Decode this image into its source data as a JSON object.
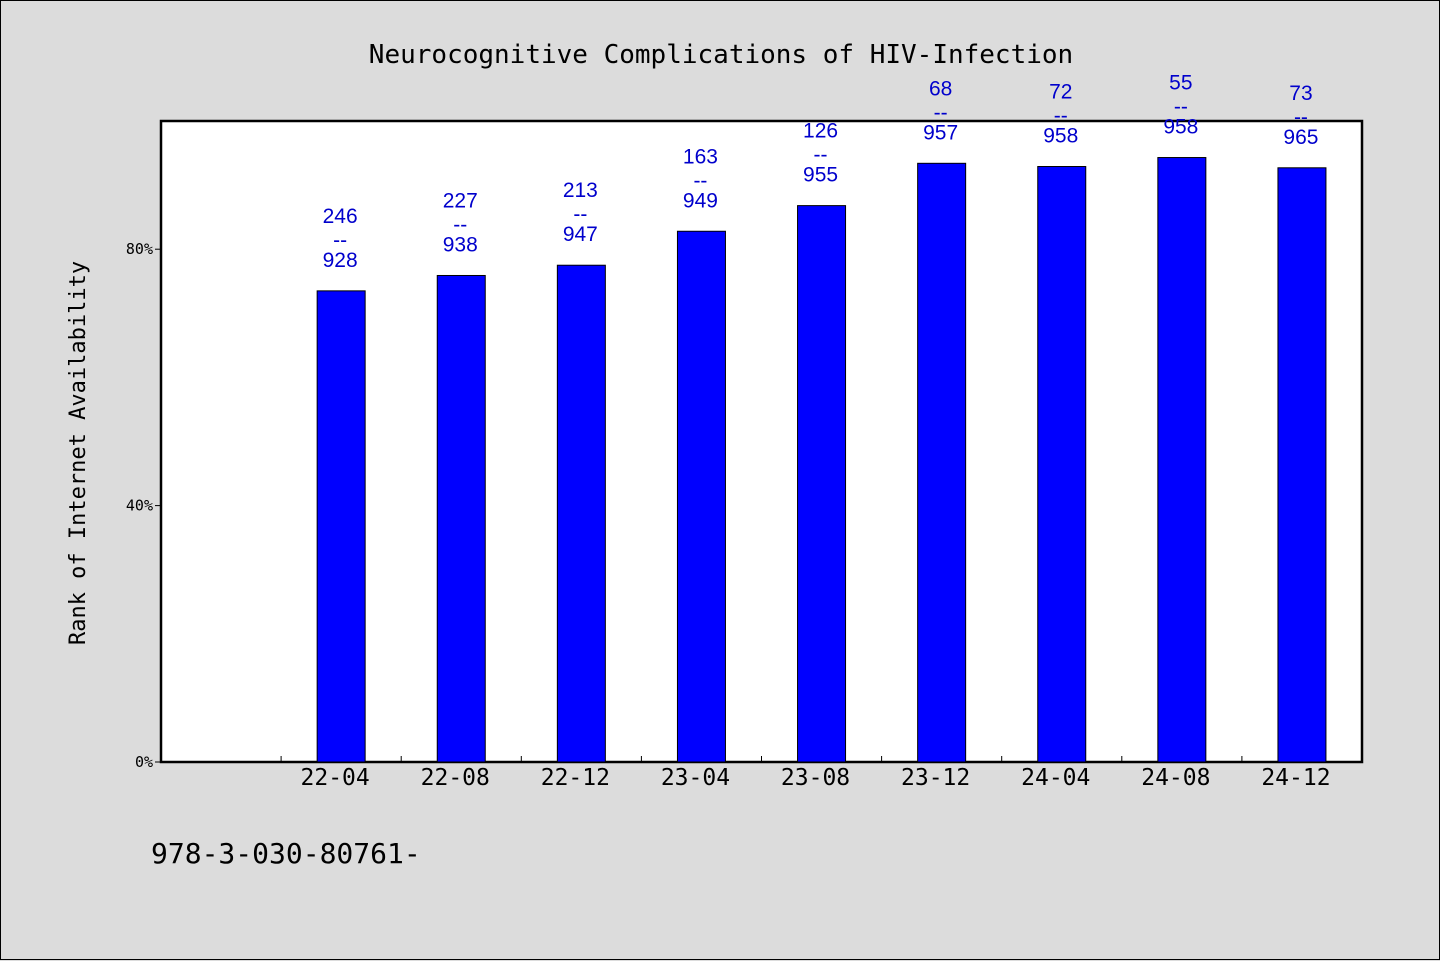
{
  "chart_data": {
    "type": "bar",
    "title": "Neurocognitive Complications of HIV-Infection",
    "xlabel": "",
    "ylabel": "Rank of Internet Availability",
    "ylim": [
      0,
      100
    ],
    "yticks": [
      "0%",
      "40%",
      "80%"
    ],
    "ytick_values": [
      0,
      40,
      80
    ],
    "categories": [
      "22-04",
      "22-08",
      "22-12",
      "23-04",
      "23-08",
      "23-12",
      "24-04",
      "24-08",
      "24-12"
    ],
    "values": [
      73.5,
      75.9,
      77.5,
      82.8,
      86.8,
      93.4,
      92.9,
      94.3,
      92.7
    ],
    "label_top": [
      "246",
      "227",
      "213",
      "163",
      "126",
      "68",
      "72",
      "55",
      "73"
    ],
    "label_bottom": [
      "928",
      "938",
      "947",
      "949",
      "955",
      "957",
      "958",
      "958",
      "965"
    ],
    "label_separator": "--",
    "grid": false,
    "legend": "none",
    "colors": {
      "bar": "#0000ff",
      "label": "#0000cc",
      "plot_bg": "#ffffff",
      "page_bg": "#dcdcdc"
    }
  },
  "footnote": "978-3-030-80761-"
}
